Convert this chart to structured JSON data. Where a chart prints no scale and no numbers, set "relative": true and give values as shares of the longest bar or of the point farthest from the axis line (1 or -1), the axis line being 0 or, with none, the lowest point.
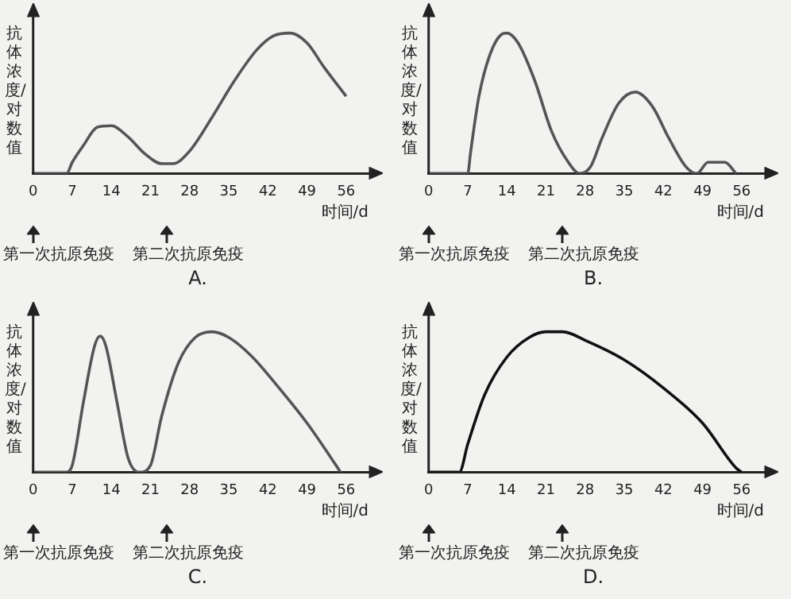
{
  "chart_data": [
    {
      "type": "line",
      "title": "A.",
      "xlabel": "时间/d",
      "ylabel": "抗体浓度/对数值",
      "relative": true,
      "line_style": "solid",
      "xlim": [
        0,
        60
      ],
      "xticks": [
        0,
        7,
        14,
        21,
        28,
        35,
        42,
        49,
        56
      ],
      "annotations": [
        "第一次抗原免疫",
        "第二次抗原免疫"
      ],
      "series": [
        {
          "color": "#555555",
          "x": [
            0,
            6,
            7,
            9,
            11.5,
            14,
            17,
            20,
            23,
            25,
            28,
            32,
            36,
            40,
            43,
            46,
            49,
            52,
            56
          ],
          "values": [
            0,
            0,
            0.08,
            0.2,
            0.33,
            0.34,
            0.26,
            0.14,
            0.07,
            0.07,
            0.16,
            0.4,
            0.66,
            0.88,
            0.98,
            1,
            0.93,
            0.76,
            0.55
          ]
        }
      ]
    },
    {
      "type": "line",
      "title": "B.",
      "xlabel": "时间/d",
      "ylabel": "抗体浓度/对数值",
      "relative": true,
      "line_style": "solid",
      "xlim": [
        0,
        60
      ],
      "xticks": [
        0,
        7,
        14,
        21,
        28,
        35,
        42,
        49,
        56
      ],
      "annotations": [
        "第一次抗原免疫",
        "第二次抗原免疫"
      ],
      "series": [
        {
          "color": "#555555",
          "x": [
            0,
            7,
            7.5,
            9,
            11,
            13,
            14,
            16,
            19,
            22,
            25,
            27,
            29,
            31,
            34,
            37,
            40,
            43,
            46,
            48,
            50,
            53,
            55
          ],
          "values": [
            0,
            0,
            0.15,
            0.55,
            0.85,
            0.99,
            1,
            0.93,
            0.66,
            0.3,
            0.08,
            0,
            0.05,
            0.25,
            0.5,
            0.58,
            0.48,
            0.25,
            0.05,
            0,
            0.08,
            0.08,
            0
          ]
        }
      ]
    },
    {
      "type": "line",
      "title": "C.",
      "xlabel": "时间/d",
      "ylabel": "抗体浓度/对数值",
      "relative": true,
      "line_style": "solid",
      "xlim": [
        0,
        60
      ],
      "xticks": [
        0,
        7,
        14,
        21,
        28,
        35,
        42,
        49,
        56
      ],
      "annotations": [
        "第一次抗原免疫",
        "第二次抗原免疫"
      ],
      "series": [
        {
          "color": "#555555",
          "x": [
            0,
            6,
            7,
            9,
            11,
            12,
            13,
            15,
            17,
            19,
            21,
            23,
            26,
            29,
            32,
            35,
            39,
            44,
            49,
            53,
            55
          ],
          "values": [
            0,
            0,
            0.05,
            0.5,
            0.9,
            0.97,
            0.9,
            0.5,
            0.1,
            0,
            0.05,
            0.4,
            0.78,
            0.96,
            1,
            0.96,
            0.83,
            0.6,
            0.35,
            0.12,
            0
          ]
        }
      ]
    },
    {
      "type": "line",
      "title": "D.",
      "xlabel": "时间/d",
      "ylabel": "抗体浓度/对数值",
      "relative": true,
      "line_style": "solid",
      "xlim": [
        0,
        60
      ],
      "xticks": [
        0,
        7,
        14,
        21,
        28,
        35,
        42,
        49,
        56
      ],
      "annotations": [
        "第一次抗原免疫",
        "第二次抗原免疫"
      ],
      "series": [
        {
          "color": "#111111",
          "x": [
            0,
            5.5,
            7,
            10,
            14,
            18,
            21,
            24,
            28,
            35,
            42,
            49,
            55,
            56
          ],
          "values": [
            0,
            0,
            0.2,
            0.55,
            0.82,
            0.96,
            1,
            1,
            0.94,
            0.8,
            0.6,
            0.35,
            0.03,
            0
          ]
        }
      ]
    }
  ]
}
